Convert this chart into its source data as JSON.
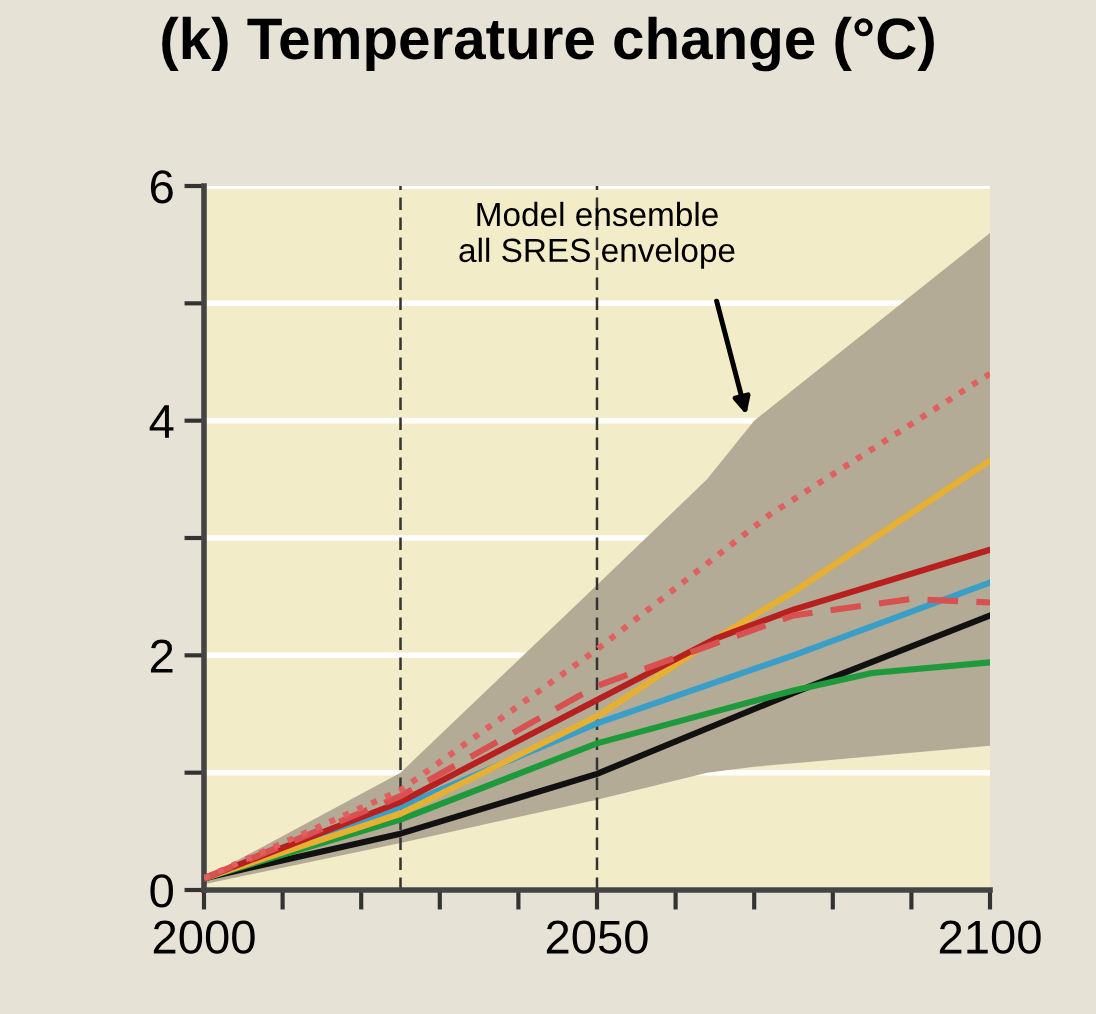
{
  "chart_data": {
    "type": "line",
    "title": "(k) Temperature change (°C)",
    "series": [
      {
        "type": "area",
        "color": "#b3ab96",
        "x": [
          2000,
          2025,
          2050,
          2064,
          2070,
          2100
        ],
        "values": [
          null,
          null,
          null,
          null,
          null,
          null
        ],
        "lower": [
          0.05,
          0.4,
          0.77,
          1.0,
          1.05,
          1.23
        ],
        "upper": [
          0.1,
          1.0,
          2.6,
          3.5,
          4.0,
          5.6
        ]
      },
      {
        "color": "#111111",
        "x": [
          2000,
          2025,
          2050,
          2075,
          2100
        ],
        "values": [
          0.1,
          0.48,
          0.99,
          1.68,
          2.34
        ]
      },
      {
        "color": "#1e9a3c",
        "x": [
          2000,
          2025,
          2050,
          2075,
          2085,
          2100
        ],
        "values": [
          0.1,
          0.6,
          1.25,
          1.7,
          1.85,
          1.94
        ]
      },
      {
        "color": "#3a9fc8",
        "x": [
          2000,
          2025,
          2050,
          2075,
          2100
        ],
        "values": [
          0.1,
          0.71,
          1.42,
          2.0,
          2.62
        ]
      },
      {
        "color": "#e8b030",
        "x": [
          2000,
          2025,
          2050,
          2065,
          2075,
          2100
        ],
        "values": [
          0.1,
          0.65,
          1.48,
          2.14,
          2.54,
          3.66
        ]
      },
      {
        "color": "#b82020",
        "x": [
          2000,
          2025,
          2050,
          2065,
          2075,
          2100
        ],
        "values": [
          0.1,
          0.75,
          1.62,
          2.14,
          2.39,
          2.9
        ]
      },
      {
        "color": "#d85050",
        "line_style": "dashed",
        "x": [
          2000,
          2025,
          2050,
          2075,
          2090,
          2100
        ],
        "values": [
          0.1,
          0.8,
          1.74,
          2.34,
          2.48,
          2.45
        ]
      },
      {
        "color": "#e06060",
        "line_style": "dotted",
        "x": [
          2000,
          2025,
          2050,
          2072,
          2100
        ],
        "values": [
          0.1,
          0.85,
          2.05,
          3.2,
          4.4
        ]
      }
    ],
    "xlim": [
      2000,
      2100
    ],
    "xticks": [
      2000,
      {
        "value": 2010,
        "label": null
      },
      {
        "value": 2020,
        "label": null
      },
      {
        "value": 2030,
        "label": null
      },
      {
        "value": 2040,
        "label": null
      },
      2050,
      {
        "value": 2060,
        "label": null
      },
      {
        "value": 2070,
        "label": null
      },
      {
        "value": 2080,
        "label": null
      },
      {
        "value": 2090,
        "label": null
      },
      2100
    ],
    "ylim": [
      0,
      6
    ],
    "yticks": [
      0,
      {
        "value": 1,
        "label": null
      },
      2,
      {
        "value": 3,
        "label": null
      },
      4,
      {
        "value": 5,
        "label": null
      },
      6
    ],
    "grid": "y",
    "ref_lines": [
      {
        "axis": "x",
        "value": 2025,
        "line_style": "dashed",
        "color": "#333333"
      },
      {
        "axis": "x",
        "value": 2050,
        "line_style": "dashed",
        "color": "#333333"
      }
    ],
    "annotations": [
      {
        "text": "Model ensemble\nall SRES envelope",
        "x": 2069,
        "y": 4.05
      }
    ]
  }
}
